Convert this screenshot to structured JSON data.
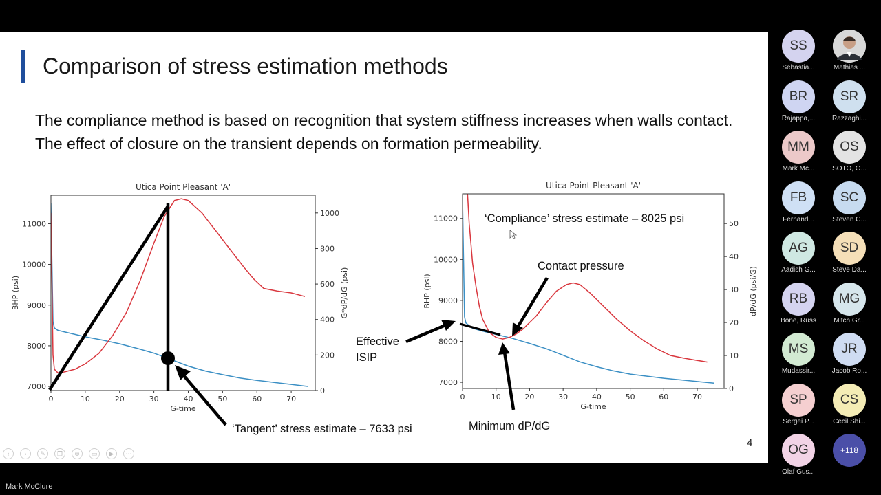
{
  "slide": {
    "title": "Comparison of stress estimation methods",
    "body": "The compliance method is based on recognition that system stiffness increases when walls contact. The effect of closure on the transient depends on formation permeability.",
    "number": "4"
  },
  "chart_data": [
    {
      "type": "line",
      "title": "Utica Point Pleasant 'A'",
      "xlabel": "G-time",
      "ylabel": "BHP (psi)",
      "y2label": "G*dP/dG (psi)",
      "xlim": [
        0,
        77
      ],
      "ylim": [
        6900,
        11700
      ],
      "y2lim": [
        0,
        1100
      ],
      "xticks": [
        "0",
        "10",
        "20",
        "30",
        "40",
        "50",
        "60",
        "70"
      ],
      "yticks": [
        "7000",
        "8000",
        "9000",
        "10000",
        "11000"
      ],
      "y2ticks": [
        "0",
        "200",
        "400",
        "600",
        "800",
        "1000"
      ],
      "series": [
        {
          "axis": "y",
          "color": "#3b8fc4",
          "x": [
            0,
            0.3,
            0.6,
            1,
            2,
            5,
            10,
            15,
            20,
            25,
            30,
            35,
            40,
            45,
            50,
            55,
            60,
            65,
            70,
            75
          ],
          "y": [
            11500,
            10000,
            8600,
            8440,
            8380,
            8320,
            8220,
            8140,
            8050,
            7940,
            7820,
            7660,
            7500,
            7380,
            7290,
            7210,
            7150,
            7100,
            7050,
            7000
          ]
        },
        {
          "axis": "y2",
          "color": "#d9373e",
          "x": [
            0,
            0.3,
            0.6,
            1,
            2,
            4,
            7,
            10,
            14,
            18,
            22,
            26,
            30,
            33,
            36,
            38,
            40,
            44,
            48,
            52,
            56,
            59,
            62,
            66,
            70,
            74
          ],
          "y": [
            1000,
            600,
            200,
            120,
            100,
            105,
            120,
            150,
            210,
            310,
            440,
            620,
            830,
            980,
            1070,
            1080,
            1070,
            1000,
            900,
            800,
            700,
            630,
            575,
            560,
            550,
            530
          ]
        }
      ],
      "annotations": [
        {
          "text": "‘Tangent’ stress estimate – 7633 psi"
        }
      ]
    },
    {
      "type": "line",
      "title": "Utica Point Pleasant 'A'",
      "xlabel": "G-time",
      "ylabel": "BHP (psi)",
      "y2label": "dP/dG (psi/G)",
      "xlim": [
        0,
        78
      ],
      "ylim": [
        6850,
        11600
      ],
      "y2lim": [
        0,
        59
      ],
      "xticks": [
        "0",
        "10",
        "20",
        "30",
        "40",
        "50",
        "60",
        "70"
      ],
      "yticks": [
        "7000",
        "8000",
        "9000",
        "10000",
        "11000"
      ],
      "y2ticks": [
        "0",
        "10",
        "20",
        "30",
        "40",
        "50"
      ],
      "series": [
        {
          "axis": "y",
          "color": "#3b8fc4",
          "x": [
            0,
            0.3,
            0.6,
            1,
            3,
            6,
            10,
            15,
            20,
            25,
            30,
            35,
            40,
            45,
            50,
            55,
            60,
            65,
            70,
            75
          ],
          "y": [
            11500,
            10000,
            8600,
            8450,
            8320,
            8250,
            8170,
            8070,
            7950,
            7820,
            7660,
            7500,
            7380,
            7280,
            7200,
            7150,
            7100,
            7060,
            7020,
            6980
          ]
        },
        {
          "axis": "y2",
          "color": "#d9373e",
          "x": [
            1.5,
            2,
            2.5,
            3,
            4,
            5,
            6,
            8,
            10,
            12,
            14,
            16,
            18,
            20,
            22,
            25,
            28,
            31,
            33,
            35,
            38,
            42,
            46,
            50,
            54,
            58,
            62,
            66,
            70,
            73
          ],
          "y": [
            59,
            50,
            44,
            38,
            31,
            25,
            21,
            17,
            15.5,
            15,
            15.5,
            16.5,
            18,
            20,
            22,
            26,
            29.5,
            31.5,
            32,
            31.5,
            29,
            25,
            21,
            17.5,
            14.5,
            12,
            10,
            9.2,
            8.5,
            8
          ]
        }
      ],
      "annotations": [
        {
          "text": "‘Compliance’ stress estimate – 8025 psi"
        },
        {
          "text": "Contact pressure"
        },
        {
          "text": "Effective"
        },
        {
          "text": "ISIP"
        },
        {
          "text": "Minimum dP/dG"
        }
      ]
    }
  ],
  "participants": [
    {
      "initials": "SS",
      "name": "Sebastia...",
      "color": "#d4d3ef"
    },
    {
      "initials": "",
      "name": "Mathias ...",
      "color": "#c9c9c9",
      "photo": true
    },
    {
      "initials": "BR",
      "name": "Rajappa,...",
      "color": "#cfd5f2"
    },
    {
      "initials": "SR",
      "name": "Razzaghi...",
      "color": "#cfe0ef"
    },
    {
      "initials": "MM",
      "name": "Mark Mc...",
      "color": "#ecc9c9"
    },
    {
      "initials": "OS",
      "name": "SOTO, O...",
      "color": "#e3e3e3"
    },
    {
      "initials": "FB",
      "name": "Fernand...",
      "color": "#cfe0f5"
    },
    {
      "initials": "SC",
      "name": "Steven C...",
      "color": "#c7dbf0"
    },
    {
      "initials": "AG",
      "name": "Aadish G...",
      "color": "#cfe8e2"
    },
    {
      "initials": "SD",
      "name": "Steve Da...",
      "color": "#f5dfb8"
    },
    {
      "initials": "RB",
      "name": "Bone, Russ",
      "color": "#d4d3ef"
    },
    {
      "initials": "MG",
      "name": "Mitch Gr...",
      "color": "#d6e6ec"
    },
    {
      "initials": "MS",
      "name": "Mudassir...",
      "color": "#d2ead2"
    },
    {
      "initials": "JR",
      "name": "Jacob Ro...",
      "color": "#cfdcf2"
    },
    {
      "initials": "SP",
      "name": "Sergei P...",
      "color": "#f5cfd0"
    },
    {
      "initials": "CS",
      "name": "Cecil Shi...",
      "color": "#f4ecb5"
    },
    {
      "initials": "OG",
      "name": "Olaf Gus...",
      "color": "#f2d3e6"
    },
    {
      "initials": "+118",
      "name": "",
      "color": "#4b4fa8",
      "more": true
    }
  ],
  "speaker": "Mark McClure",
  "controls": [
    "back-icon",
    "forward-icon",
    "pen-icon",
    "copy-icon",
    "zoom-icon",
    "subtitles-icon",
    "camera-icon",
    "more-icon"
  ]
}
